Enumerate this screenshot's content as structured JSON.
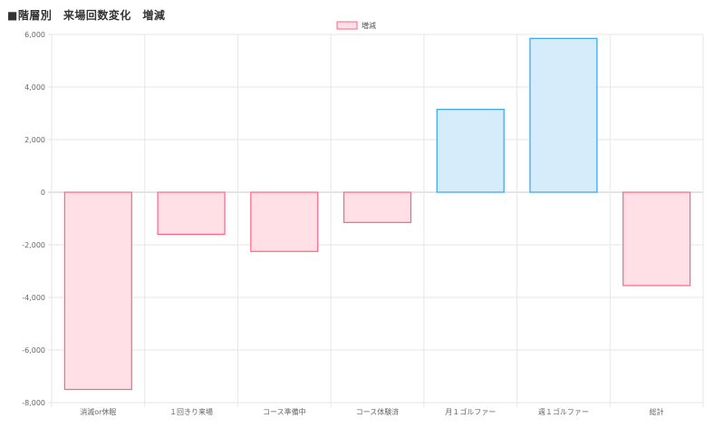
{
  "title": "■階層別　来場回数変化　増減",
  "chart_data": {
    "type": "bar",
    "title": "■階層別　来場回数変化　増減",
    "categories": [
      "消滅or休眠",
      "１回きり来場",
      "コース準備中",
      "コース体験済",
      "月１ゴルファー",
      "週１ゴルファー",
      "総計"
    ],
    "series": [
      {
        "name": "増減",
        "values": [
          -7500,
          -1600,
          -2250,
          -1150,
          3150,
          5850,
          -3550
        ]
      }
    ],
    "xlabel": "",
    "ylabel": "",
    "ylim": [
      -8000,
      6000
    ],
    "yticks": [
      6000,
      4000,
      2000,
      0,
      -2000,
      -4000,
      -6000,
      -8000
    ],
    "ytick_labels": [
      "6,000",
      "4,000",
      "2,000",
      "0",
      "-2,000",
      "-4,000",
      "-6,000",
      "-8,000"
    ],
    "grid": true,
    "legend_position": "top-center",
    "colors": {
      "negative_fill": "#ffe0e6",
      "negative_stroke": "#ff6384",
      "positive_fill": "#d7ecfb",
      "positive_stroke": "#36a2eb",
      "grid": "#e6e6e6",
      "zero_line": "#c8c8c8"
    }
  }
}
